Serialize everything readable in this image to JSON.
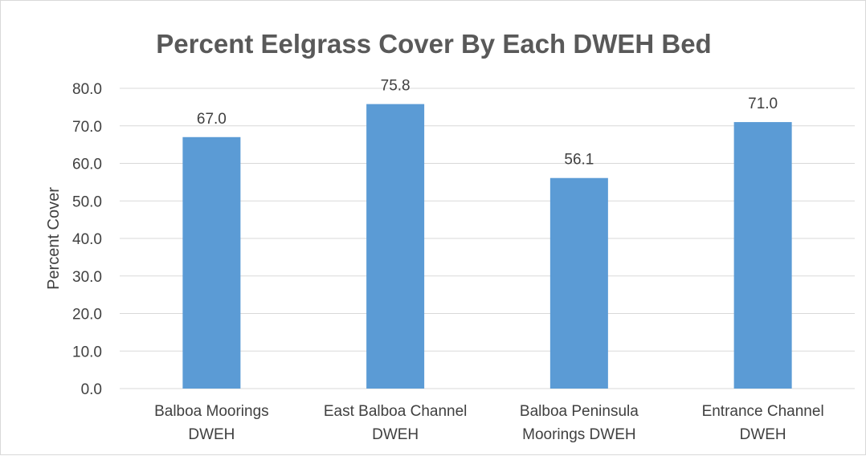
{
  "chart_data": {
    "type": "bar",
    "title": "Percent Eelgrass Cover By Each DWEH Bed",
    "xlabel": "",
    "ylabel": "Percent Cover",
    "categories": [
      [
        "Balboa Moorings",
        "DWEH"
      ],
      [
        "East Balboa Channel",
        "DWEH"
      ],
      [
        "Balboa Peninsula",
        "Moorings DWEH"
      ],
      [
        "Entrance Channel",
        "DWEH"
      ]
    ],
    "values": [
      67.0,
      75.8,
      56.1,
      71.0
    ],
    "value_labels": [
      "67.0",
      "75.8",
      "56.1",
      "71.0"
    ],
    "ylim": [
      0,
      80
    ],
    "yticks": [
      "0.0",
      "10.0",
      "20.0",
      "30.0",
      "40.0",
      "50.0",
      "60.0",
      "70.0",
      "80.0"
    ],
    "grid": true,
    "legend": "none",
    "bar_color": "#5b9bd5"
  }
}
